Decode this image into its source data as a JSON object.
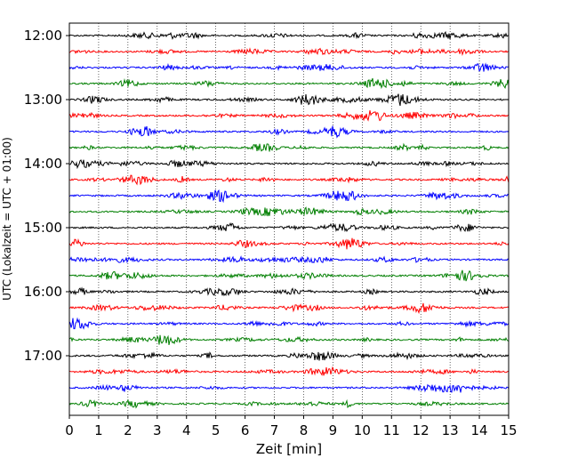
{
  "chart_data": {
    "type": "line",
    "title": "",
    "xlabel": "Zeit  [min]",
    "ylabel": "UTC (Lokalzeit = UTC + 01:00)",
    "xlim": [
      0,
      15
    ],
    "x_ticks": [
      0,
      1,
      2,
      3,
      4,
      5,
      6,
      7,
      8,
      9,
      10,
      11,
      12,
      13,
      14,
      15
    ],
    "x_tick_labels": [
      "0",
      "1",
      "2",
      "3",
      "4",
      "5",
      "6",
      "7",
      "8",
      "9",
      "10",
      "11",
      "12",
      "13",
      "14",
      "15"
    ],
    "y_tick_labels": [
      "12:00",
      "13:00",
      "14:00",
      "15:00",
      "16:00",
      "17:00"
    ],
    "grid": {
      "x": true,
      "y": false
    },
    "trace_start_time": "12:00",
    "trace_interval_minutes": 15,
    "trace_count": 24,
    "trace_colors": [
      "#000000",
      "#ff0000",
      "#0000ff",
      "#007f00"
    ]
  }
}
